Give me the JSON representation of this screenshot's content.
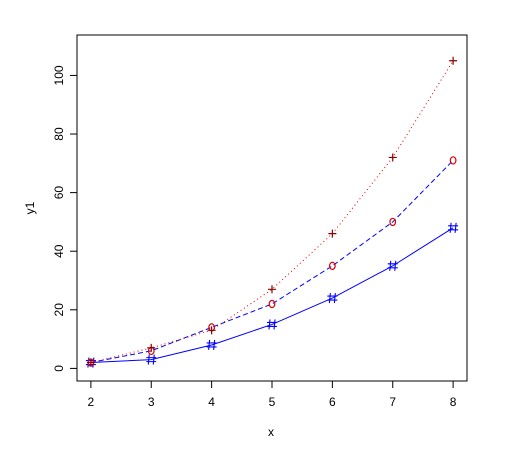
{
  "chart_data": {
    "type": "line",
    "x_label": "x",
    "y_label": "y1",
    "x": [
      2,
      3,
      4,
      5,
      6,
      7,
      8
    ],
    "series": [
      {
        "color": "#0000ff",
        "marker": "hash",
        "marker_color": "#0000ff",
        "dash": "solid",
        "values": [
          2,
          3,
          8,
          15,
          24,
          35,
          48
        ]
      },
      {
        "color": "#0000ff",
        "marker": "circle",
        "marker_color": "#dd0000",
        "dash": "dashed",
        "values": [
          2,
          6,
          14,
          22,
          35,
          50,
          71
        ]
      },
      {
        "color": "#dd0000",
        "marker": "plus",
        "marker_color": "#8b0000",
        "dash": "dotted",
        "values": [
          2,
          7,
          13,
          27,
          46,
          72,
          105
        ]
      }
    ],
    "xlim": [
      1.77,
      8.23
    ],
    "xticks": [
      2,
      3,
      4,
      5,
      6,
      7,
      8
    ],
    "ylim": [
      -4.3,
      113.8
    ],
    "yticks": [
      0,
      20,
      40,
      60,
      80,
      100
    ]
  }
}
